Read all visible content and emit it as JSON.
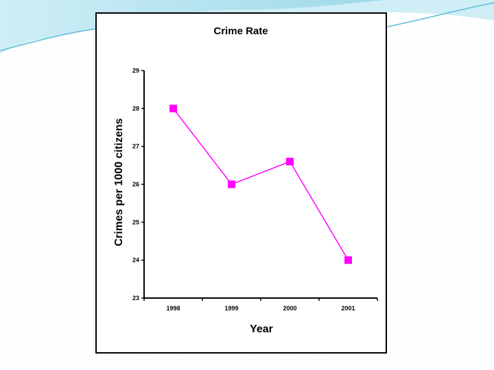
{
  "slide": {
    "theme_colors": {
      "wave_light": "#cfeef6",
      "wave_mid": "#9fd9ea",
      "wave_dark": "#5fbcd8",
      "dots": "#e3eef3"
    }
  },
  "chart_data": {
    "type": "line",
    "title": "Crime Rate",
    "xlabel": "Year",
    "ylabel": "Crimes per 1000 citizens",
    "categories": [
      "1998",
      "1999",
      "2000",
      "2001"
    ],
    "series": [
      {
        "name": "Crime Rate",
        "values": [
          28,
          26,
          26.6,
          24
        ],
        "color": "#ff00ff"
      }
    ],
    "ylim": [
      23,
      29
    ],
    "yticks": [
      "23",
      "24",
      "25",
      "26",
      "27",
      "28",
      "29"
    ],
    "grid": false,
    "legend": "none"
  }
}
